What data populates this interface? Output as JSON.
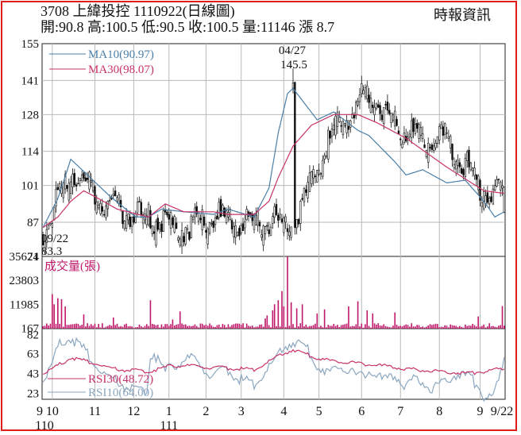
{
  "header": {
    "title": "3708  上緯投控 1110922(日線圖)",
    "stats": "開:90.8 高:100.5 低:90.5 收:100.5 量:11146 漲 8.7",
    "source": "時報資訊"
  },
  "colors": {
    "border": "#e21b1b",
    "ma10": "#4a7fa8",
    "ma30": "#c8336b",
    "volume": "#c0186a",
    "rsi30": "#c8336b",
    "rsi10": "#8aa6c0",
    "candle": "#111111",
    "grid": "#b9b9b9"
  },
  "chart_data": [
    {
      "type": "candlestick",
      "panel": "price",
      "yticks": [
        155,
        141,
        128,
        114,
        101,
        87,
        74
      ],
      "ylim": [
        74,
        155
      ],
      "grid": true,
      "legend": [
        "MA10(90.97)",
        "MA30(98.07)"
      ],
      "annotations": [
        {
          "label": "04/27",
          "value": "145.5",
          "x": "2022-04-27",
          "y": 145.5
        },
        {
          "label": "09/22",
          "value": "83.3",
          "x": "2021-09-22",
          "y": 83.3
        }
      ],
      "anchors": {
        "d": [
          0,
          15,
          36,
          57,
          76,
          92,
          114,
          135,
          157,
          176,
          196,
          218,
          238,
          249
        ],
        "c": [
          85,
          110,
          96,
          91,
          88,
          92,
          90,
          90,
          125,
          140,
          124,
          122,
          102,
          100.5
        ]
      },
      "ma10_anchor": {
        "d": [
          0,
          8,
          15,
          24,
          36,
          50,
          57,
          64,
          76,
          92,
          100,
          114,
          122,
          127,
          132,
          135,
          148,
          157,
          170,
          176,
          190,
          196,
          205,
          218,
          228,
          238,
          244,
          249
        ],
        "v": [
          85,
          96,
          111,
          105,
          97,
          89,
          89,
          92,
          91,
          90,
          92,
          89,
          100,
          121,
          136,
          138,
          126,
          129,
          122,
          120,
          110,
          105,
          107,
          102,
          103,
          95,
          89,
          91
        ]
      },
      "ma30_anchor": {
        "d": [
          0,
          8,
          15,
          22,
          30,
          40,
          57,
          66,
          76,
          92,
          100,
          114,
          122,
          127,
          135,
          145,
          157,
          170,
          180,
          196,
          218,
          238,
          249
        ],
        "v": [
          85,
          89,
          95,
          99,
          96,
          92,
          89,
          94,
          91,
          91,
          90,
          90,
          95,
          104,
          116,
          124,
          128,
          128,
          125,
          119,
          108,
          99,
          98
        ]
      },
      "series": [
        {
          "name": "MA10(90.97)",
          "value": 90.97
        },
        {
          "name": "MA30(98.07)",
          "value": 98.07
        }
      ]
    },
    {
      "type": "bar",
      "panel": "volume",
      "label": "成交量(張)",
      "yticks": [
        35621,
        23803,
        11985,
        167
      ],
      "ylim": [
        0,
        35621
      ],
      "spikes": {
        "d": [
          5,
          6,
          8,
          10,
          12,
          22,
          38,
          58,
          70,
          74,
          120,
          121,
          124,
          125,
          127,
          129,
          130,
          132,
          134,
          137,
          140,
          148,
          152,
          165,
          170,
          175,
          178,
          190,
          235,
          248
        ],
        "v": [
          17000,
          12000,
          15000,
          14500,
          11000,
          7000,
          5500,
          14000,
          4500,
          8500,
          5000,
          6500,
          9000,
          12000,
          14000,
          18500,
          11000,
          35621,
          13000,
          10000,
          12000,
          7500,
          9500,
          11000,
          13500,
          9000,
          7500,
          8000,
          6000,
          11146
        ]
      }
    },
    {
      "type": "line",
      "panel": "rsi",
      "yticks": [
        82,
        63,
        43,
        23
      ],
      "ylim": [
        17,
        88
      ],
      "rsi10_anchor": {
        "d": [
          0,
          4,
          8,
          11,
          15,
          19,
          24,
          30,
          38,
          50,
          56,
          58,
          60,
          66,
          72,
          80,
          92,
          100,
          106,
          114,
          120,
          126,
          130,
          133,
          136,
          142,
          148,
          152,
          160,
          170,
          176,
          184,
          190,
          196,
          202,
          210,
          218,
          225,
          232,
          238,
          243,
          246,
          249
        ],
        "v": [
          40,
          52,
          72,
          80,
          82,
          76,
          66,
          50,
          40,
          28,
          30,
          65,
          66,
          48,
          56,
          60,
          44,
          50,
          40,
          36,
          48,
          60,
          72,
          76,
          78,
          72,
          54,
          44,
          55,
          42,
          48,
          38,
          44,
          34,
          42,
          28,
          40,
          46,
          40,
          24,
          22,
          38,
          64
        ]
      },
      "rsi30_anchor": {
        "d": [
          0,
          8,
          15,
          24,
          40,
          57,
          70,
          92,
          114,
          128,
          135,
          150,
          170,
          190,
          210,
          230,
          249
        ],
        "v": [
          44,
          52,
          60,
          56,
          48,
          46,
          52,
          50,
          48,
          62,
          68,
          58,
          54,
          50,
          46,
          44,
          49
        ]
      },
      "series": [
        {
          "name": "RSI30(48.72)",
          "value": 48.72
        },
        {
          "name": "RSI10(64.00)",
          "value": 64.0
        }
      ]
    }
  ],
  "xaxis": {
    "ticks": [
      "9",
      "10",
      "11",
      "12",
      "1",
      "2",
      "3",
      "4",
      "5",
      "6",
      "7",
      "8",
      "9",
      "9/22"
    ],
    "tick_days": [
      0,
      5,
      28,
      49,
      68,
      88,
      107,
      130,
      149,
      172,
      193,
      214,
      236,
      249
    ],
    "years": [
      {
        "label": "110",
        "at_day": 0
      },
      {
        "label": "111",
        "at_day": 68
      }
    ]
  }
}
